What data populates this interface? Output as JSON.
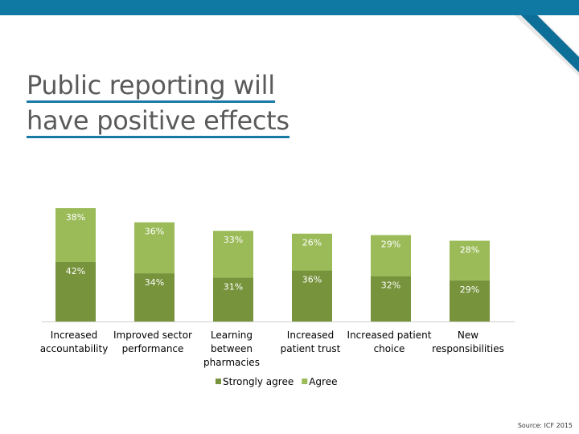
{
  "title_lines": [
    "Public reporting will",
    "have positive effects"
  ],
  "source": "Source: ICF 2015",
  "colors": {
    "brand_bar": "#0f78a3",
    "corner_dark": "#0d6f97",
    "corner_light": "#e8e8e8",
    "strongly_agree": "#77933c",
    "agree": "#9bbb59",
    "label_text": "#ffffff"
  },
  "chart_data": {
    "type": "bar",
    "stacked": true,
    "categories": [
      [
        "Increased",
        "accountability"
      ],
      [
        "Improved sector",
        "performance"
      ],
      [
        "Learning",
        "between",
        "pharmacies"
      ],
      [
        "Increased",
        "patient trust"
      ],
      [
        "Increased patient",
        "choice"
      ],
      [
        "New",
        "responsibilities"
      ]
    ],
    "series": [
      {
        "name": "Strongly agree",
        "values": [
          42,
          34,
          31,
          36,
          32,
          29
        ]
      },
      {
        "name": "Agree",
        "values": [
          38,
          36,
          33,
          26,
          29,
          28
        ]
      }
    ],
    "value_suffix": "%",
    "ylim": [
      0,
      80
    ],
    "legend": "bottom",
    "grid": false
  }
}
